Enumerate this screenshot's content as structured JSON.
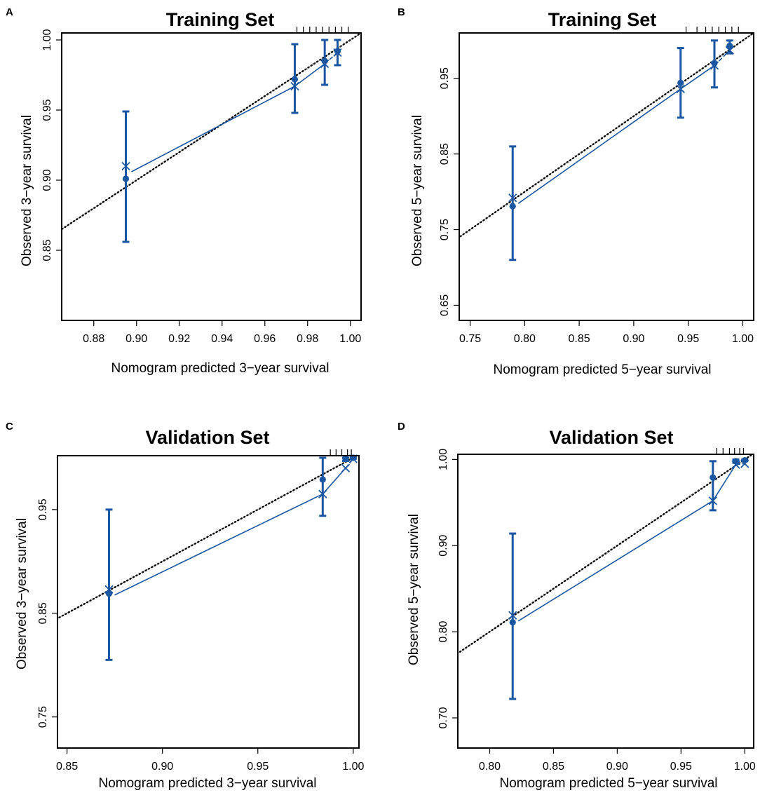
{
  "chart_data": [
    {
      "panel": "A",
      "type": "scatter",
      "title": "Training Set",
      "xlabel": "Nomogram predicted 3−year survival",
      "ylabel": "Observed 3−year survival",
      "xlim": [
        0.865,
        1.005
      ],
      "ylim": [
        0.8,
        1.005
      ],
      "xticks": [
        0.88,
        0.9,
        0.92,
        0.94,
        0.96,
        0.98,
        1.0
      ],
      "xtick_labels": [
        "0.88",
        "0.90",
        "0.92",
        "0.94",
        "0.96",
        "0.98",
        "1.00"
      ],
      "yticks": [
        0.85,
        0.9,
        0.95,
        1.0
      ],
      "ytick_labels": [
        "0.85",
        "0.90",
        "0.95",
        "1.00"
      ],
      "observed": [
        {
          "x": 0.895,
          "y": 0.901,
          "lower": 0.856,
          "upper": 0.949
        },
        {
          "x": 0.974,
          "y": 0.972,
          "lower": 0.948,
          "upper": 0.997
        },
        {
          "x": 0.988,
          "y": 0.985,
          "lower": 0.968,
          "upper": 1.0
        },
        {
          "x": 0.994,
          "y": 0.992,
          "lower": 0.982,
          "upper": 1.0
        }
      ],
      "bias_corrected": [
        {
          "x": 0.895,
          "y": 0.91
        },
        {
          "x": 0.974,
          "y": 0.967
        },
        {
          "x": 0.988,
          "y": 0.983
        },
        {
          "x": 0.994,
          "y": 0.991
        }
      ],
      "rug_x": [
        0.975,
        0.978,
        0.981,
        0.984,
        0.987,
        0.99,
        0.993,
        0.996,
        0.999
      ]
    },
    {
      "panel": "B",
      "type": "scatter",
      "title": "Training Set",
      "xlabel": "Nomogram predicted 5−year survival",
      "ylabel": "Observed 5−year survival",
      "xlim": [
        0.74,
        1.01
      ],
      "ylim": [
        0.63,
        1.01
      ],
      "xticks": [
        0.75,
        0.8,
        0.85,
        0.9,
        0.95,
        1.0
      ],
      "xtick_labels": [
        "0.75",
        "0.80",
        "0.85",
        "0.90",
        "0.95",
        "1.00"
      ],
      "yticks": [
        0.65,
        0.75,
        0.85,
        0.95
      ],
      "ytick_labels": [
        "0.65",
        "0.75",
        "0.85",
        "0.95"
      ],
      "observed": [
        {
          "x": 0.789,
          "y": 0.781,
          "lower": 0.71,
          "upper": 0.86
        },
        {
          "x": 0.943,
          "y": 0.944,
          "lower": 0.898,
          "upper": 0.99
        },
        {
          "x": 0.974,
          "y": 0.97,
          "lower": 0.938,
          "upper": 1.0
        },
        {
          "x": 0.988,
          "y": 0.993,
          "lower": 0.983,
          "upper": 1.0
        }
      ],
      "bias_corrected": [
        {
          "x": 0.789,
          "y": 0.792
        },
        {
          "x": 0.943,
          "y": 0.936
        },
        {
          "x": 0.974,
          "y": 0.967
        },
        {
          "x": 0.988,
          "y": 0.987
        }
      ],
      "rug_x": [
        0.948,
        0.958,
        0.966,
        0.972,
        0.978,
        0.984,
        0.99,
        0.996
      ]
    },
    {
      "panel": "C",
      "type": "scatter",
      "title": "Validation Set",
      "xlabel": "Nomogram predicted 3−year survival",
      "ylabel": "Observed 3−year survival",
      "xlim": [
        0.845,
        1.003
      ],
      "ylim": [
        0.72,
        1.002
      ],
      "xticks": [
        0.85,
        0.9,
        0.95,
        1.0
      ],
      "xtick_labels": [
        "0.85",
        "0.90",
        "0.95",
        "1.00"
      ],
      "yticks": [
        0.75,
        0.85,
        0.95
      ],
      "ytick_labels": [
        "0.75",
        "0.85",
        "0.95"
      ],
      "observed": [
        {
          "x": 0.872,
          "y": 0.869,
          "lower": 0.805,
          "upper": 0.95
        },
        {
          "x": 0.984,
          "y": 0.979,
          "lower": 0.944,
          "upper": 1.0
        },
        {
          "x": 0.996,
          "y": 0.999,
          "lower": 0.997,
          "upper": 1.0
        },
        {
          "x": 1.0,
          "y": 1.0,
          "lower": 0.999,
          "upper": 1.0
        }
      ],
      "bias_corrected": [
        {
          "x": 0.872,
          "y": 0.873
        },
        {
          "x": 0.984,
          "y": 0.965
        },
        {
          "x": 0.996,
          "y": 0.99
        },
        {
          "x": 1.0,
          "y": 0.999
        }
      ],
      "rug_x": [
        0.988,
        0.991,
        0.994,
        0.997,
        0.999
      ]
    },
    {
      "panel": "D",
      "type": "scatter",
      "title": "Validation Set",
      "xlabel": "Nomogram predicted 5−year survival",
      "ylabel": "Observed 5−year survival",
      "xlim": [
        0.775,
        1.007
      ],
      "ylim": [
        0.665,
        1.006
      ],
      "xticks": [
        0.8,
        0.85,
        0.9,
        0.95,
        1.0
      ],
      "xtick_labels": [
        "0.80",
        "0.85",
        "0.90",
        "0.95",
        "1.00"
      ],
      "yticks": [
        0.7,
        0.8,
        0.9,
        1.0
      ],
      "ytick_labels": [
        "0.70",
        "0.80",
        "0.90",
        "1.00"
      ],
      "observed": [
        {
          "x": 0.818,
          "y": 0.811,
          "lower": 0.722,
          "upper": 0.914
        },
        {
          "x": 0.975,
          "y": 0.979,
          "lower": 0.941,
          "upper": 0.998
        },
        {
          "x": 0.993,
          "y": 0.998,
          "lower": 0.996,
          "upper": 1.0
        },
        {
          "x": 1.0,
          "y": 0.999,
          "lower": 0.998,
          "upper": 1.0
        }
      ],
      "bias_corrected": [
        {
          "x": 0.818,
          "y": 0.819
        },
        {
          "x": 0.975,
          "y": 0.952
        },
        {
          "x": 0.993,
          "y": 0.994
        },
        {
          "x": 1.0,
          "y": 0.995
        }
      ],
      "rug_x": [
        0.978,
        0.983,
        0.988,
        0.992,
        0.996,
        0.999
      ]
    }
  ],
  "colors": {
    "series": "#1a56a2",
    "ideal": "#000000",
    "reference": "#b8b8b8",
    "frame": "#000000"
  }
}
